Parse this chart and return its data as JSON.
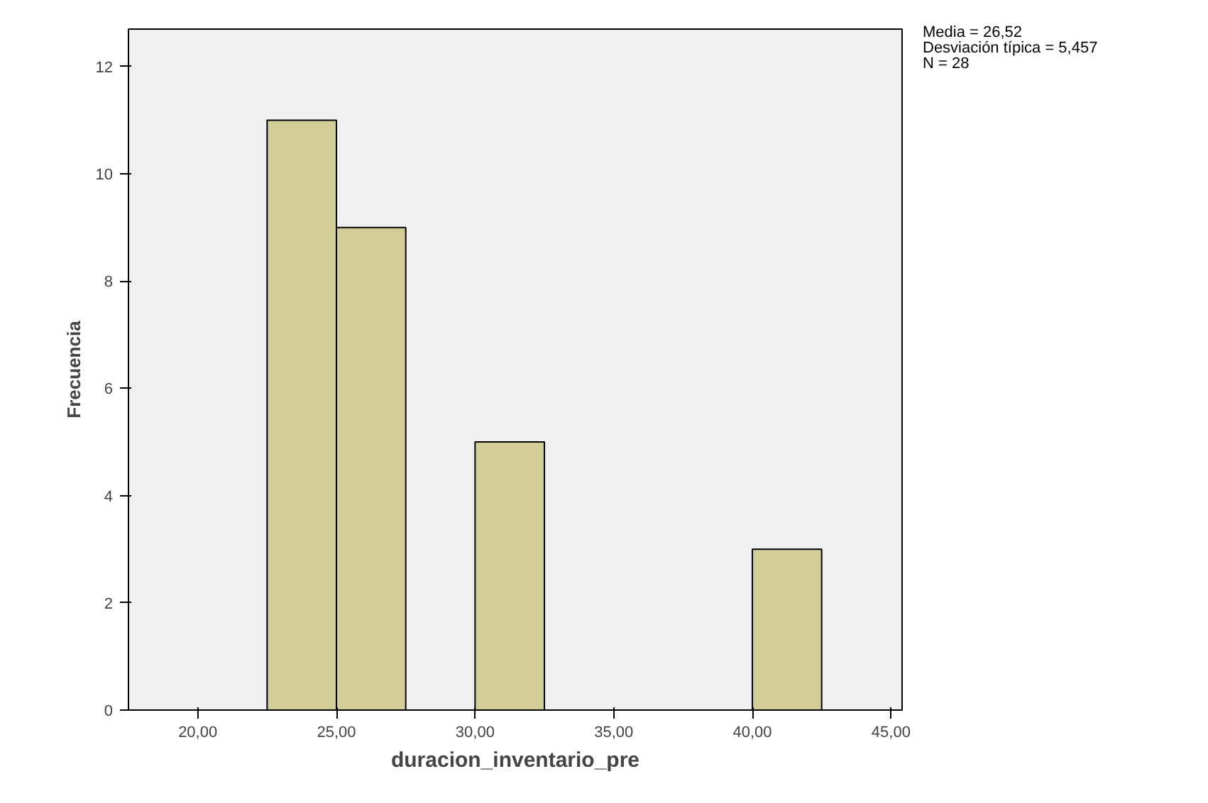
{
  "chart_data": {
    "type": "histogram",
    "xlabel": "duracion_inventario_pre",
    "ylabel": "Frecuencia",
    "bins": [
      22.5,
      25,
      27.5,
      30,
      32.5,
      35,
      37.5,
      40,
      42.5
    ],
    "values": [
      11,
      9,
      0,
      5,
      0,
      0,
      0,
      3
    ],
    "color": "#d3ce97",
    "xlim": [
      17.5,
      45.4
    ],
    "ylim": [
      0,
      12.7
    ],
    "xticks": [
      {
        "value": 20,
        "label": "20,00"
      },
      {
        "value": 25,
        "label": "25,00"
      },
      {
        "value": 30,
        "label": "30,00"
      },
      {
        "value": 35,
        "label": "35,00"
      },
      {
        "value": 40,
        "label": "40,00"
      },
      {
        "value": 45,
        "label": "45,00"
      }
    ],
    "yticks": [
      0,
      2,
      4,
      6,
      8,
      10,
      12
    ],
    "grid": false,
    "annotations": [
      "Media = 26,52",
      "Desviación típica = 5,457",
      "N = 28"
    ]
  }
}
